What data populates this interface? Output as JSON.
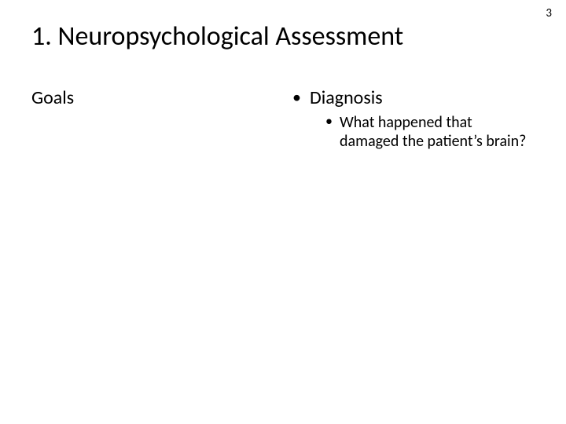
{
  "page_number": "3",
  "title": "1. Neuropsychological Assessment",
  "left": {
    "heading": "Goals"
  },
  "right": {
    "bullets": [
      {
        "label": "Diagnosis",
        "sub": [
          "What happened that damaged the patient’s brain?"
        ]
      }
    ]
  },
  "style": {
    "background_color": "#ffffff",
    "text_color": "#000000",
    "title_fontsize": 34,
    "body_fontsize": 24,
    "sub_fontsize": 20,
    "font_family": "Calibri"
  }
}
